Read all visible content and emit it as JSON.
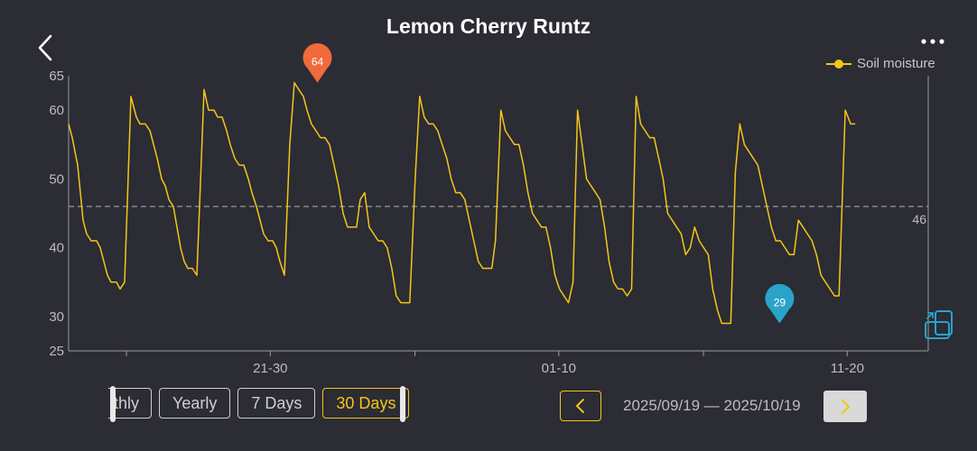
{
  "header": {
    "title": "Lemon Cherry Runtz"
  },
  "icons": {
    "back": "chevron-left-icon",
    "more": "more-dots-icon",
    "rotate": "rotate-screen-icon",
    "prev": "chevron-left-icon",
    "next": "chevron-right-icon"
  },
  "colors": {
    "line": "#f5c518",
    "max_marker": "#f06a3c",
    "min_marker": "#2aa3c9",
    "axis": "#9a9a9a",
    "background": "#2b2c34",
    "avg_line": "#9a9a9a"
  },
  "range_buttons": [
    {
      "label": "thly",
      "active": false
    },
    {
      "label": "Yearly",
      "active": false
    },
    {
      "label": "7 Days",
      "active": false
    },
    {
      "label": "30 Days",
      "active": true
    }
  ],
  "date_nav": {
    "range_text": "2025/09/19 — 2025/10/19"
  },
  "chart_data": {
    "type": "line",
    "title": "Lemon Cherry Runtz",
    "xlabel": "",
    "ylabel": "",
    "ylim": [
      25,
      65
    ],
    "yticks": [
      25,
      30,
      40,
      50,
      60,
      65
    ],
    "xlim": [
      0,
      1
    ],
    "xticks": [
      {
        "pos": 0.0673,
        "label": ""
      },
      {
        "pos": 0.2346,
        "label": "21-30"
      },
      {
        "pos": 0.4029,
        "label": ""
      },
      {
        "pos": 0.5702,
        "label": "01-10"
      },
      {
        "pos": 0.7385,
        "label": ""
      },
      {
        "pos": 0.9058,
        "label": "11-20"
      }
    ],
    "legend": {
      "position": "top-right"
    },
    "grid": false,
    "average": {
      "value": 46,
      "label": "46"
    },
    "max_marker": {
      "value": 64,
      "label": "64",
      "x": 0.2894
    },
    "min_marker": {
      "value": 29,
      "label": "29",
      "x": 0.8271
    },
    "series": [
      {
        "name": "Soil moisture",
        "points": [
          [
            0.0,
            58
          ],
          [
            0.0042,
            56
          ],
          [
            0.0105,
            52
          ],
          [
            0.0168,
            44
          ],
          [
            0.021,
            42
          ],
          [
            0.0263,
            41
          ],
          [
            0.0326,
            41
          ],
          [
            0.0368,
            40
          ],
          [
            0.041,
            38
          ],
          [
            0.0452,
            36
          ],
          [
            0.0494,
            35
          ],
          [
            0.0557,
            35
          ],
          [
            0.0599,
            34
          ],
          [
            0.0651,
            35
          ],
          [
            0.0725,
            62
          ],
          [
            0.0788,
            59
          ],
          [
            0.083,
            58
          ],
          [
            0.0893,
            58
          ],
          [
            0.0946,
            57
          ],
          [
            0.0988,
            55
          ],
          [
            0.103,
            53
          ],
          [
            0.1082,
            50
          ],
          [
            0.1124,
            49
          ],
          [
            0.1167,
            47
          ],
          [
            0.1219,
            46
          ],
          [
            0.1261,
            43
          ],
          [
            0.1303,
            40
          ],
          [
            0.1345,
            38
          ],
          [
            0.1387,
            37
          ],
          [
            0.1439,
            37
          ],
          [
            0.1492,
            36
          ],
          [
            0.1576,
            63
          ],
          [
            0.1628,
            60
          ],
          [
            0.1691,
            60
          ],
          [
            0.1733,
            59
          ],
          [
            0.1786,
            59
          ],
          [
            0.1838,
            57
          ],
          [
            0.188,
            55
          ],
          [
            0.1933,
            53
          ],
          [
            0.1985,
            52
          ],
          [
            0.2038,
            52
          ],
          [
            0.209,
            50
          ],
          [
            0.2132,
            48
          ],
          [
            0.2185,
            46
          ],
          [
            0.2227,
            44
          ],
          [
            0.2269,
            42
          ],
          [
            0.2321,
            41
          ],
          [
            0.2374,
            41
          ],
          [
            0.2416,
            40
          ],
          [
            0.2458,
            38
          ],
          [
            0.251,
            36
          ],
          [
            0.2573,
            55
          ],
          [
            0.2626,
            64
          ],
          [
            0.2678,
            63
          ],
          [
            0.2731,
            62
          ],
          [
            0.2773,
            60
          ],
          [
            0.2825,
            58
          ],
          [
            0.2878,
            57
          ],
          [
            0.293,
            56
          ],
          [
            0.2983,
            56
          ],
          [
            0.3035,
            55
          ],
          [
            0.3088,
            52
          ],
          [
            0.314,
            49
          ],
          [
            0.3193,
            45
          ],
          [
            0.3245,
            43
          ],
          [
            0.3297,
            43
          ],
          [
            0.335,
            43
          ],
          [
            0.3392,
            47
          ],
          [
            0.3444,
            48
          ],
          [
            0.3497,
            43
          ],
          [
            0.3549,
            42
          ],
          [
            0.3602,
            41
          ],
          [
            0.3654,
            41
          ],
          [
            0.3706,
            40
          ],
          [
            0.3759,
            37
          ],
          [
            0.3811,
            33
          ],
          [
            0.3864,
            32
          ],
          [
            0.3916,
            32
          ],
          [
            0.3969,
            32
          ],
          [
            0.4032,
            50
          ],
          [
            0.4084,
            62
          ],
          [
            0.4137,
            59
          ],
          [
            0.4189,
            58
          ],
          [
            0.4242,
            58
          ],
          [
            0.4294,
            57
          ],
          [
            0.4346,
            55
          ],
          [
            0.4399,
            53
          ],
          [
            0.4451,
            50
          ],
          [
            0.4504,
            48
          ],
          [
            0.4556,
            48
          ],
          [
            0.4609,
            47
          ],
          [
            0.4661,
            44
          ],
          [
            0.4713,
            41
          ],
          [
            0.4766,
            38
          ],
          [
            0.4818,
            37
          ],
          [
            0.4871,
            37
          ],
          [
            0.4923,
            37
          ],
          [
            0.4965,
            41
          ],
          [
            0.5028,
            60
          ],
          [
            0.5081,
            57
          ],
          [
            0.5133,
            56
          ],
          [
            0.5186,
            55
          ],
          [
            0.5238,
            55
          ],
          [
            0.5291,
            52
          ],
          [
            0.5343,
            48
          ],
          [
            0.5396,
            45
          ],
          [
            0.5448,
            44
          ],
          [
            0.5501,
            43
          ],
          [
            0.5553,
            43
          ],
          [
            0.5606,
            40
          ],
          [
            0.5658,
            36
          ],
          [
            0.571,
            34
          ],
          [
            0.5763,
            33
          ],
          [
            0.5815,
            32
          ],
          [
            0.5868,
            35
          ],
          [
            0.592,
            60
          ],
          [
            0.5973,
            55
          ],
          [
            0.6025,
            50
          ],
          [
            0.6077,
            49
          ],
          [
            0.613,
            48
          ],
          [
            0.6182,
            47
          ],
          [
            0.6235,
            43
          ],
          [
            0.6287,
            38
          ],
          [
            0.634,
            35
          ],
          [
            0.6392,
            34
          ],
          [
            0.6444,
            34
          ],
          [
            0.6497,
            33
          ],
          [
            0.6549,
            34
          ],
          [
            0.6602,
            62
          ],
          [
            0.6654,
            58
          ],
          [
            0.6707,
            57
          ],
          [
            0.6759,
            56
          ],
          [
            0.6811,
            56
          ],
          [
            0.6864,
            53
          ],
          [
            0.6916,
            50
          ],
          [
            0.6969,
            45
          ],
          [
            0.7021,
            44
          ],
          [
            0.7074,
            43
          ],
          [
            0.7126,
            42
          ],
          [
            0.7179,
            39
          ],
          [
            0.7231,
            40
          ],
          [
            0.7283,
            43
          ],
          [
            0.7336,
            41
          ],
          [
            0.7388,
            40
          ],
          [
            0.7441,
            39
          ],
          [
            0.7493,
            34
          ],
          [
            0.7546,
            31
          ],
          [
            0.7598,
            29
          ],
          [
            0.7651,
            29
          ],
          [
            0.7703,
            29
          ],
          [
            0.7756,
            51
          ],
          [
            0.7808,
            58
          ],
          [
            0.7861,
            55
          ],
          [
            0.7913,
            54
          ],
          [
            0.7965,
            53
          ],
          [
            0.8018,
            52
          ],
          [
            0.807,
            49
          ],
          [
            0.8123,
            46
          ],
          [
            0.8175,
            43
          ],
          [
            0.8228,
            41
          ],
          [
            0.828,
            41
          ],
          [
            0.8333,
            40
          ],
          [
            0.8385,
            39
          ],
          [
            0.8438,
            39
          ],
          [
            0.849,
            44
          ],
          [
            0.8543,
            43
          ],
          [
            0.8595,
            42
          ],
          [
            0.8648,
            41
          ],
          [
            0.87,
            39
          ],
          [
            0.8752,
            36
          ],
          [
            0.8805,
            35
          ],
          [
            0.8857,
            34
          ],
          [
            0.891,
            33
          ],
          [
            0.8962,
            33
          ],
          [
            0.9035,
            60
          ],
          [
            0.9098,
            58
          ],
          [
            0.915,
            58
          ]
        ]
      }
    ]
  }
}
